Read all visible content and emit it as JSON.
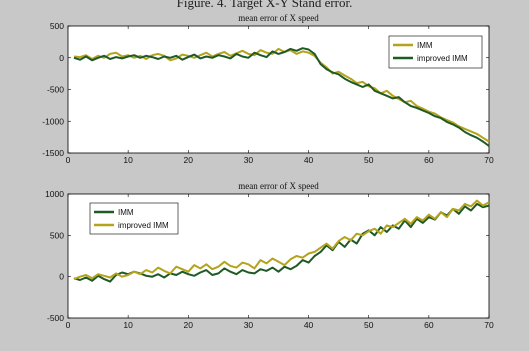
{
  "caption": "Figure. 4.   Target X-Y Stand  error.",
  "colors": {
    "background": "#c8c8c8",
    "axes_bg": "#ffffff",
    "imm": "#b4a31c",
    "improved_imm": "#1f5a26"
  },
  "chart_data": [
    {
      "type": "line",
      "title": "mean error of X speed",
      "xlabel": "",
      "ylabel": "",
      "xlim": [
        0,
        70
      ],
      "ylim": [
        -1500,
        500
      ],
      "xticks": [
        0,
        10,
        20,
        30,
        40,
        50,
        60,
        70
      ],
      "yticks": [
        500,
        0,
        -500,
        -1000,
        -1500
      ],
      "grid": false,
      "legend": "top-right",
      "series": [
        {
          "name": "IMM",
          "color": "#b4a31c",
          "x": [
            1,
            2,
            3,
            4,
            5,
            6,
            7,
            8,
            9,
            10,
            11,
            12,
            13,
            14,
            15,
            16,
            17,
            18,
            19,
            20,
            21,
            22,
            23,
            24,
            25,
            26,
            27,
            28,
            29,
            30,
            31,
            32,
            33,
            34,
            35,
            36,
            37,
            38,
            39,
            40,
            41,
            42,
            43,
            44,
            45,
            46,
            47,
            48,
            49,
            50,
            51,
            52,
            53,
            54,
            55,
            56,
            57,
            58,
            59,
            60,
            61,
            62,
            63,
            64,
            65,
            66,
            67,
            68,
            69,
            70
          ],
          "values": [
            20,
            10,
            40,
            -20,
            30,
            0,
            60,
            80,
            20,
            40,
            0,
            30,
            -20,
            40,
            60,
            30,
            -40,
            -10,
            50,
            30,
            0,
            40,
            80,
            20,
            60,
            90,
            30,
            70,
            110,
            60,
            40,
            120,
            80,
            60,
            140,
            90,
            120,
            60,
            100,
            80,
            30,
            -80,
            -150,
            -250,
            -220,
            -280,
            -330,
            -400,
            -380,
            -450,
            -480,
            -560,
            -520,
            -600,
            -650,
            -700,
            -680,
            -760,
            -800,
            -850,
            -880,
            -940,
            -980,
            -1020,
            -1080,
            -1120,
            -1160,
            -1200,
            -1260,
            -1320
          ]
        },
        {
          "name": "improved IMM",
          "color": "#1f5a26",
          "x": [
            1,
            2,
            3,
            4,
            5,
            6,
            7,
            8,
            9,
            10,
            11,
            12,
            13,
            14,
            15,
            16,
            17,
            18,
            19,
            20,
            21,
            22,
            23,
            24,
            25,
            26,
            27,
            28,
            29,
            30,
            31,
            32,
            33,
            34,
            35,
            36,
            37,
            38,
            39,
            40,
            41,
            42,
            43,
            44,
            45,
            46,
            47,
            48,
            49,
            50,
            51,
            52,
            53,
            54,
            55,
            56,
            57,
            58,
            59,
            60,
            61,
            62,
            63,
            64,
            65,
            66,
            67,
            68,
            69,
            70
          ],
          "values": [
            0,
            -30,
            20,
            -40,
            0,
            30,
            -20,
            10,
            -10,
            20,
            40,
            0,
            30,
            10,
            -20,
            20,
            0,
            30,
            -30,
            10,
            50,
            -10,
            20,
            0,
            40,
            20,
            -10,
            60,
            20,
            0,
            80,
            40,
            10,
            100,
            60,
            90,
            140,
            110,
            150,
            130,
            60,
            -100,
            -180,
            -230,
            -260,
            -330,
            -380,
            -420,
            -460,
            -420,
            -520,
            -560,
            -600,
            -640,
            -620,
            -700,
            -760,
            -790,
            -830,
            -870,
            -920,
            -950,
            -1010,
            -1050,
            -1100,
            -1170,
            -1220,
            -1260,
            -1320,
            -1390
          ]
        }
      ]
    },
    {
      "type": "line",
      "title": "mean error of X speed",
      "xlabel": "",
      "ylabel": "",
      "xlim": [
        0,
        70
      ],
      "ylim": [
        -500,
        1000
      ],
      "xticks": [
        0,
        10,
        20,
        30,
        40,
        50,
        60,
        70
      ],
      "yticks": [
        1000,
        500,
        0,
        -500
      ],
      "grid": false,
      "legend": "top-left",
      "series": [
        {
          "name": "IMM",
          "color": "#1f5a26",
          "x": [
            1,
            2,
            3,
            4,
            5,
            6,
            7,
            8,
            9,
            10,
            11,
            12,
            13,
            14,
            15,
            16,
            17,
            18,
            19,
            20,
            21,
            22,
            23,
            24,
            25,
            26,
            27,
            28,
            29,
            30,
            31,
            32,
            33,
            34,
            35,
            36,
            37,
            38,
            39,
            40,
            41,
            42,
            43,
            44,
            45,
            46,
            47,
            48,
            49,
            50,
            51,
            52,
            53,
            54,
            55,
            56,
            57,
            58,
            59,
            60,
            61,
            62,
            63,
            64,
            65,
            66,
            67,
            68,
            69,
            70
          ],
          "values": [
            -20,
            -40,
            -10,
            -50,
            10,
            -30,
            -60,
            20,
            50,
            30,
            60,
            40,
            10,
            0,
            30,
            -10,
            40,
            20,
            60,
            30,
            10,
            50,
            80,
            20,
            40,
            100,
            60,
            30,
            80,
            50,
            40,
            90,
            70,
            110,
            60,
            120,
            90,
            130,
            200,
            170,
            250,
            300,
            380,
            320,
            420,
            360,
            450,
            400,
            520,
            560,
            500,
            600,
            540,
            620,
            580,
            680,
            600,
            700,
            650,
            720,
            690,
            780,
            740,
            820,
            760,
            850,
            800,
            880,
            840,
            860
          ]
        },
        {
          "name": "improved IMM",
          "color": "#b4a31c",
          "x": [
            1,
            2,
            3,
            4,
            5,
            6,
            7,
            8,
            9,
            10,
            11,
            12,
            13,
            14,
            15,
            16,
            17,
            18,
            19,
            20,
            21,
            22,
            23,
            24,
            25,
            26,
            27,
            28,
            29,
            30,
            31,
            32,
            33,
            34,
            35,
            36,
            37,
            38,
            39,
            40,
            41,
            42,
            43,
            44,
            45,
            46,
            47,
            48,
            49,
            50,
            51,
            52,
            53,
            54,
            55,
            56,
            57,
            58,
            59,
            60,
            61,
            62,
            63,
            64,
            65,
            66,
            67,
            68,
            69,
            70
          ],
          "values": [
            -30,
            0,
            20,
            -20,
            30,
            10,
            -10,
            40,
            0,
            20,
            60,
            30,
            80,
            50,
            110,
            70,
            40,
            120,
            90,
            60,
            140,
            100,
            150,
            90,
            120,
            180,
            130,
            110,
            170,
            150,
            100,
            200,
            160,
            220,
            180,
            140,
            210,
            250,
            230,
            280,
            300,
            350,
            400,
            340,
            430,
            480,
            440,
            520,
            500,
            550,
            580,
            520,
            620,
            600,
            650,
            700,
            640,
            720,
            680,
            750,
            700,
            780,
            720,
            820,
            800,
            880,
            850,
            920,
            860,
            900
          ]
        }
      ]
    }
  ]
}
